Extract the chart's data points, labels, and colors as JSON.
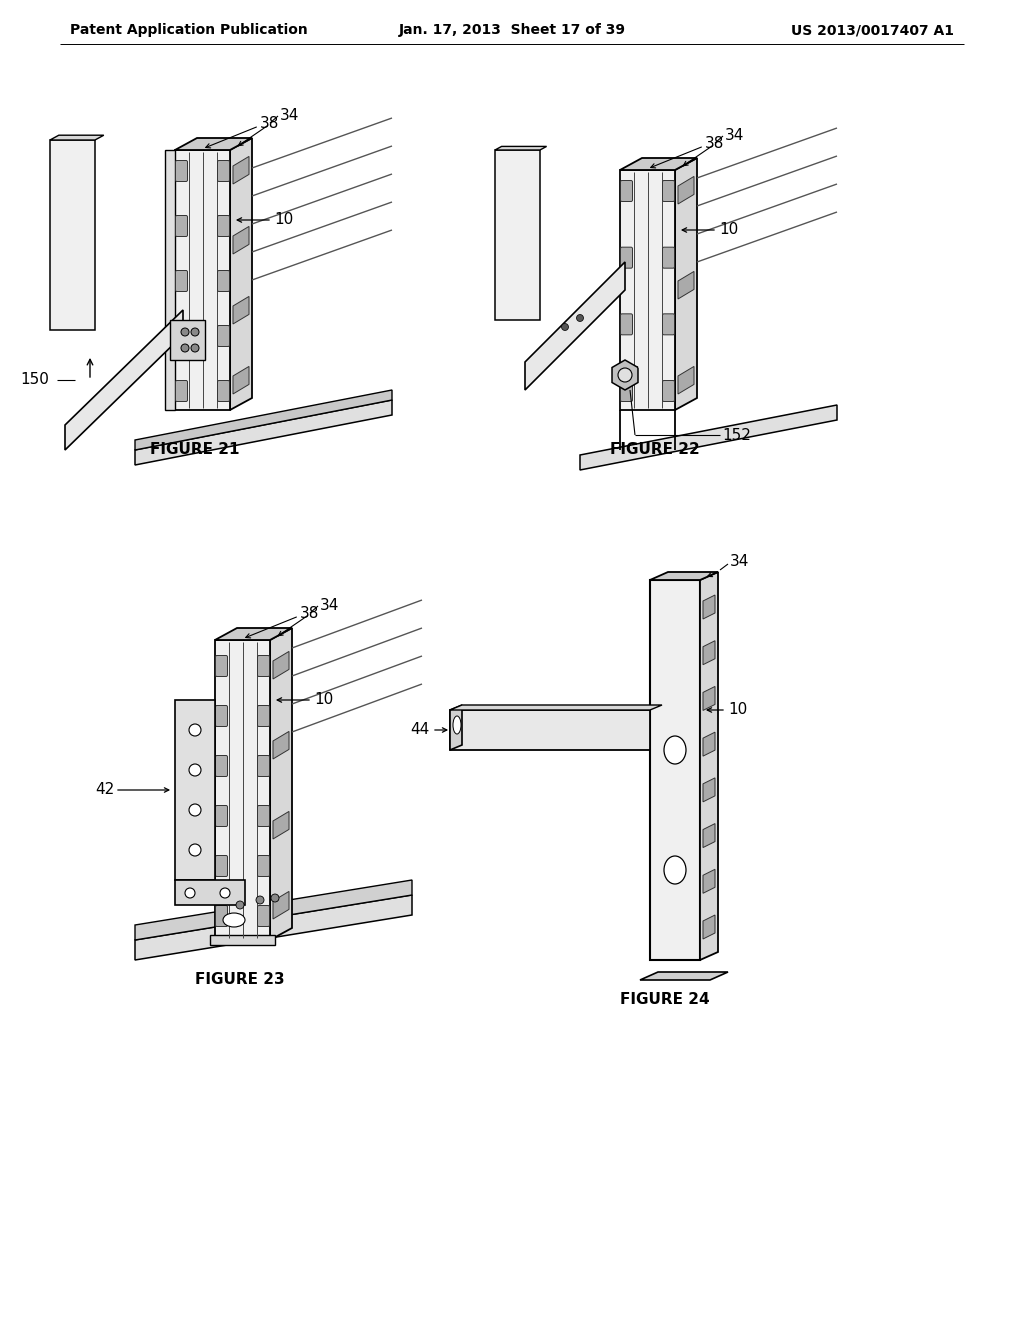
{
  "background_color": "#ffffff",
  "header_left": "Patent Application Publication",
  "header_center": "Jan. 17, 2013  Sheet 17 of 39",
  "header_right": "US 2013/0017407 A1",
  "figure_labels": [
    "FIGURE 21",
    "FIGURE 22",
    "FIGURE 23",
    "FIGURE 24"
  ],
  "fig_label_fontsize": 11,
  "header_fontsize": 10,
  "annotation_fontsize": 11
}
